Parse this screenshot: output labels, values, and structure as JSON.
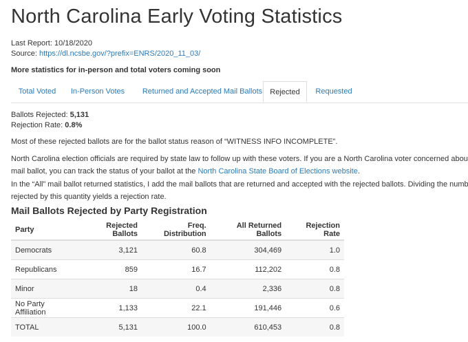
{
  "page_title": "North Carolina Early Voting Statistics",
  "last_report_label": "Last Report:",
  "last_report_value": "10/18/2020",
  "source_label": "Source:",
  "source_link": "https://dl.ncsbe.gov/?prefix=ENRS/2020_11_03/",
  "coming_soon": "More statistics for in-person and total voters coming soon",
  "tabs": [
    {
      "label": "Total Voted"
    },
    {
      "label": "In-Person Votes"
    },
    {
      "label": "Returned and Accepted Mail Ballots"
    },
    {
      "label": "Rejected"
    },
    {
      "label": "Requested"
    }
  ],
  "active_tab": "Rejected",
  "stats": {
    "rejected_label": "Ballots Rejected:",
    "rejected_value": "5,131",
    "rate_label": "Rejection Rate:",
    "rate_value": "0.8%"
  },
  "paragraphs": {
    "p1": "Most of these rejected ballots are for the ballot status reason of “WITNESS INFO INCOMPLETE”.",
    "p2_line1": "North Carolina election officials are required by state law to follow up with these voters. If you are a North Carolina voter concerned about your",
    "p2_line2_pre": "mail ballot, you can track the status of your ballot at the ",
    "p2_link": "North Carolina State Board of Elections website",
    "p2_line2_post": ".",
    "p3_line1": "In the “All” mail ballot returned statistics, I add the mail ballots that are returned and accepted with the rejected ballots. Dividing the number of",
    "p3_line2": "rejected by this quantity yields a rejection rate."
  },
  "table": {
    "title": "Mail Ballots Rejected by Party Registration",
    "headers": [
      "Party",
      "Rejected Ballots",
      "Freq. Distribution",
      "All Returned Ballots",
      "Rejection Rate"
    ],
    "rows": [
      [
        "Democrats",
        "3,121",
        "60.8",
        "304,469",
        "1.0"
      ],
      [
        "Republicans",
        "859",
        "16.7",
        "112,202",
        "0.8"
      ],
      [
        "Minor",
        "18",
        "0.4",
        "2,336",
        "0.8"
      ],
      [
        "No Party Affiliation",
        "1,133",
        "22.1",
        "191,446",
        "0.6"
      ],
      [
        "TOTAL",
        "5,131",
        "100.0",
        "610,453",
        "0.8"
      ]
    ]
  }
}
